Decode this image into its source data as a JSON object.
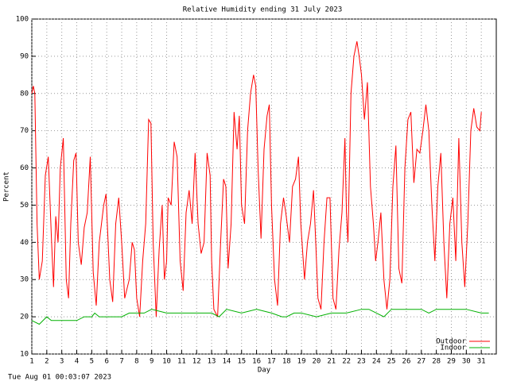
{
  "chart_data": {
    "type": "line",
    "title": "Relative Humidity ending 31 July 2023",
    "xlabel": "Day",
    "ylabel": "Percent",
    "footnote": "Tue Aug 01 00:03:07 2023",
    "xlim": [
      1,
      32
    ],
    "ylim": [
      10,
      100
    ],
    "xticks": [
      1,
      2,
      3,
      4,
      5,
      6,
      7,
      8,
      9,
      10,
      11,
      12,
      13,
      14,
      15,
      16,
      17,
      18,
      19,
      20,
      21,
      22,
      23,
      24,
      25,
      26,
      27,
      28,
      29,
      30,
      31
    ],
    "yticks": [
      10,
      20,
      30,
      40,
      50,
      60,
      70,
      80,
      90,
      100
    ],
    "grid": true,
    "legend": "bottom-right",
    "series": [
      {
        "name": "Outdoor",
        "color": "#ff0000",
        "x": [
          1.0,
          1.1,
          1.2,
          1.35,
          1.5,
          1.7,
          1.9,
          2.1,
          2.3,
          2.45,
          2.6,
          2.75,
          2.9,
          3.1,
          3.3,
          3.45,
          3.6,
          3.8,
          3.95,
          4.1,
          4.3,
          4.5,
          4.7,
          4.9,
          5.1,
          5.3,
          5.5,
          5.8,
          5.95,
          6.2,
          6.4,
          6.6,
          6.8,
          7.0,
          7.2,
          7.5,
          7.7,
          7.85,
          8.0,
          8.2,
          8.4,
          8.6,
          8.8,
          8.95,
          9.1,
          9.3,
          9.5,
          9.7,
          9.85,
          10.0,
          10.1,
          10.3,
          10.5,
          10.7,
          10.9,
          11.1,
          11.3,
          11.5,
          11.7,
          11.9,
          12.1,
          12.3,
          12.5,
          12.7,
          12.9,
          13.0,
          13.15,
          13.4,
          13.6,
          13.8,
          13.95,
          14.1,
          14.3,
          14.5,
          14.7,
          14.85,
          15.0,
          15.2,
          15.4,
          15.6,
          15.8,
          15.95,
          16.1,
          16.3,
          16.5,
          16.7,
          16.85,
          17.0,
          17.2,
          17.4,
          17.6,
          17.8,
          17.95,
          18.2,
          18.4,
          18.6,
          18.8,
          18.95,
          19.2,
          19.4,
          19.6,
          19.8,
          19.95,
          20.1,
          20.3,
          20.5,
          20.7,
          20.9,
          21.1,
          21.3,
          21.5,
          21.7,
          21.9,
          22.0,
          22.1,
          22.3,
          22.5,
          22.7,
          22.85,
          23.0,
          23.2,
          23.4,
          23.6,
          23.8,
          23.95,
          24.1,
          24.3,
          24.5,
          24.7,
          24.9,
          25.1,
          25.3,
          25.5,
          25.7,
          25.9,
          26.1,
          26.3,
          26.5,
          26.7,
          26.9,
          27.1,
          27.3,
          27.5,
          27.7,
          27.9,
          28.1,
          28.3,
          28.5,
          28.7,
          28.9,
          29.1,
          29.3,
          29.5,
          29.7,
          29.9,
          30.1,
          30.3,
          30.5,
          30.7,
          30.9,
          31.0
        ],
        "values": [
          80,
          82,
          80,
          45,
          30,
          35,
          58,
          63,
          42,
          28,
          47,
          40,
          60,
          68,
          30,
          25,
          45,
          62,
          64,
          40,
          34,
          44,
          48,
          63,
          32,
          23,
          40,
          50,
          53,
          30,
          24,
          45,
          52,
          40,
          25,
          30,
          40,
          38,
          25,
          20,
          35,
          45,
          73,
          72,
          40,
          20,
          38,
          50,
          30,
          35,
          52,
          50,
          67,
          63,
          35,
          27,
          48,
          54,
          45,
          64,
          45,
          37,
          40,
          64,
          58,
          35,
          22,
          20,
          40,
          57,
          55,
          33,
          45,
          75,
          65,
          74,
          50,
          45,
          70,
          80,
          85,
          82,
          60,
          41,
          65,
          74,
          77,
          50,
          30,
          23,
          45,
          52,
          48,
          40,
          55,
          57,
          63,
          45,
          30,
          40,
          45,
          54,
          40,
          25,
          22,
          40,
          52,
          52,
          25,
          22,
          38,
          48,
          68,
          48,
          40,
          80,
          90,
          94,
          90,
          85,
          73,
          83,
          55,
          45,
          35,
          40,
          48,
          30,
          22,
          30,
          55,
          66,
          33,
          29,
          60,
          73,
          75,
          56,
          65,
          64,
          70,
          77,
          70,
          50,
          35,
          55,
          64,
          40,
          25,
          45,
          52,
          35,
          68,
          40,
          28,
          45,
          70,
          76,
          71,
          70,
          75
        ]
      },
      {
        "name": "Indoor",
        "color": "#00b000",
        "x": [
          1,
          1.5,
          2,
          2.3,
          3,
          4,
          4.5,
          5,
          5.2,
          5.5,
          6,
          7,
          7.5,
          8,
          8.5,
          9,
          10,
          11,
          12,
          13,
          13.5,
          14,
          15,
          16,
          17,
          17.7,
          18,
          18.5,
          19,
          20,
          21,
          22,
          23,
          23.5,
          24,
          24.5,
          25,
          26,
          27,
          27.5,
          28,
          29,
          30,
          31,
          31.5
        ],
        "values": [
          19,
          18,
          20,
          19,
          19,
          19,
          20,
          20,
          21,
          20,
          20,
          20,
          21,
          21,
          21,
          22,
          21,
          21,
          21,
          21,
          20,
          22,
          21,
          22,
          21,
          20,
          20,
          21,
          21,
          20,
          21,
          21,
          22,
          22,
          21,
          20,
          22,
          22,
          22,
          21,
          22,
          22,
          22,
          21,
          21
        ]
      }
    ]
  }
}
